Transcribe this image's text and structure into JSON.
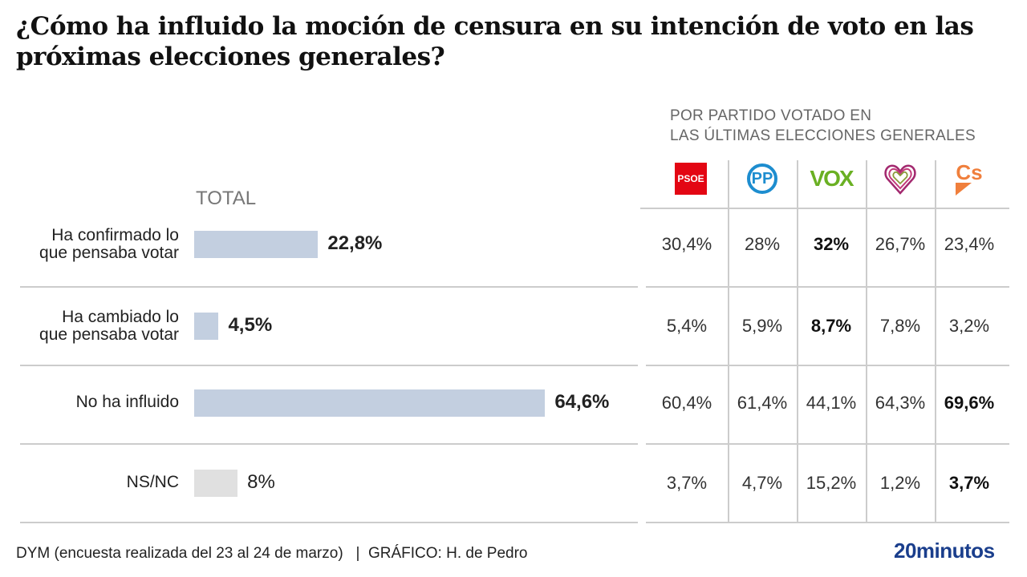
{
  "title": "¿Cómo ha influido la moción de censura en su intención de voto en las próximas elecciones generales?",
  "subtitle_line1": "POR PARTIDO VOTADO EN",
  "subtitle_line2": "LAS ÚLTIMAS ELECCIONES GENERALES",
  "source": "DYM (encuesta realizada del 23 al 24 de marzo)   |  GRÁFICO: H. de Pedro",
  "brand": "20minutos",
  "chart_data": {
    "type": "table",
    "total_label": "TOTAL",
    "categories": [
      {
        "line1": "Ha confirmado lo",
        "line2": "que pensaba votar"
      },
      {
        "line1": "Ha cambiado lo",
        "line2": "que pensaba votar"
      },
      {
        "line1": "No ha influido",
        "line2": ""
      },
      {
        "line1": "NS/NC",
        "line2": ""
      }
    ],
    "total_values": [
      22.8,
      4.5,
      64.6,
      8
    ],
    "total_labels": [
      "22,8%",
      "4,5%",
      "64,6%",
      "8%"
    ],
    "bar_colors": [
      "#c3cfe0",
      "#c3cfe0",
      "#c3cfe0",
      "#e0e0e0"
    ],
    "parties": [
      {
        "name": "PSOE",
        "color": "#e30613",
        "labels": [
          "30,4%",
          "5,4%",
          "60,4%",
          "3,7%"
        ],
        "bold": [
          false,
          false,
          false,
          false
        ]
      },
      {
        "name": "PP",
        "color": "#1d8dcf",
        "labels": [
          "28%",
          "5,9%",
          "61,4%",
          "4,7%"
        ],
        "bold": [
          false,
          false,
          false,
          false
        ]
      },
      {
        "name": "VOX",
        "color": "#6ab023",
        "labels": [
          "32%",
          "8,7%",
          "44,1%",
          "15,2%"
        ],
        "bold": [
          true,
          true,
          false,
          false
        ]
      },
      {
        "name": "Podemos",
        "color": "#a3296f",
        "labels": [
          "26,7%",
          "7,8%",
          "64,3%",
          "1,2%"
        ],
        "bold": [
          false,
          false,
          false,
          false
        ]
      },
      {
        "name": "Cs",
        "color": "#f07f3c",
        "labels": [
          "23,4%",
          "3,2%",
          "69,6%",
          "3,7%"
        ],
        "bold": [
          false,
          false,
          true,
          true
        ]
      }
    ]
  }
}
